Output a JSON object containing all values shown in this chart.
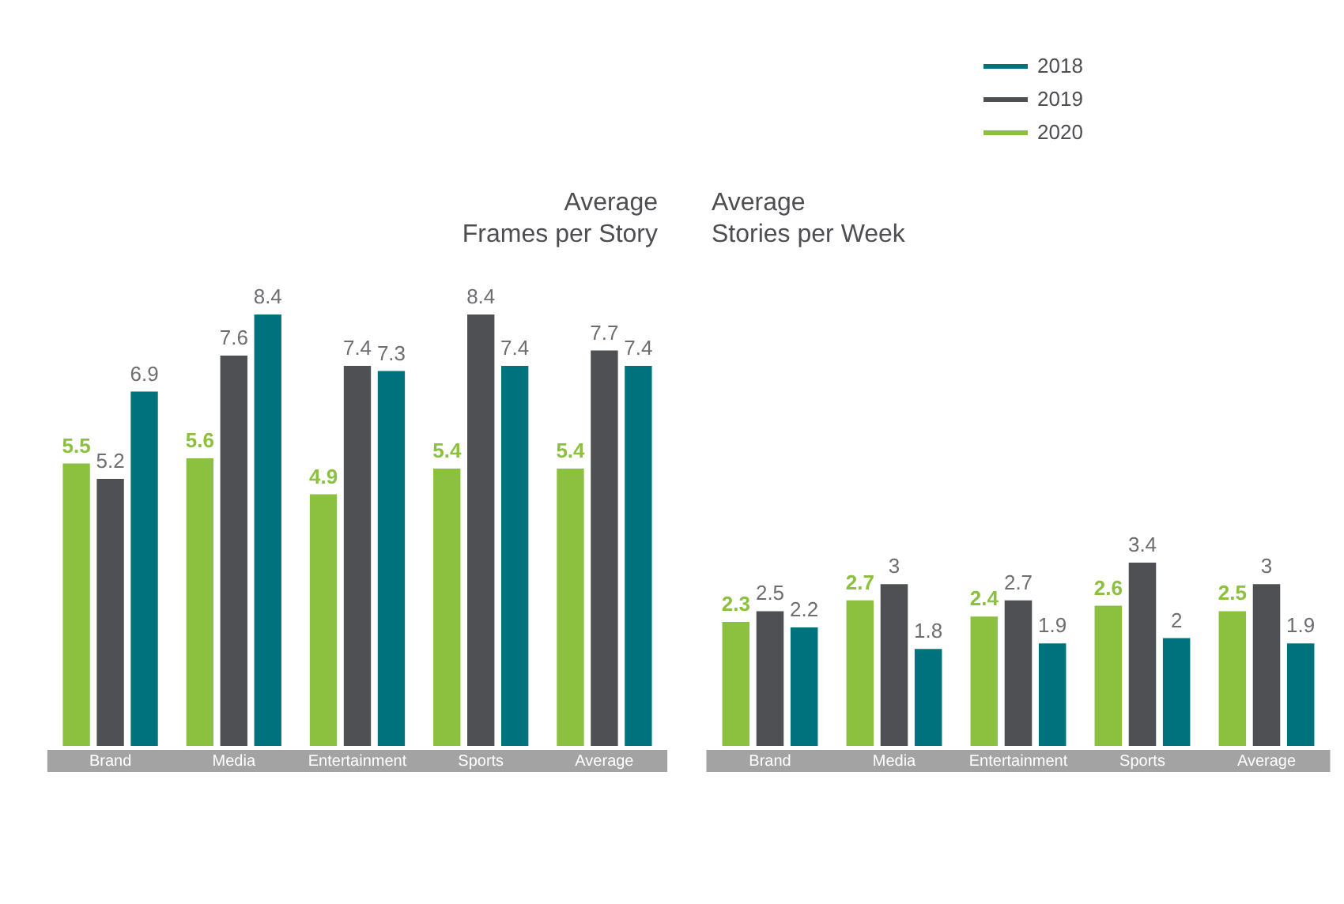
{
  "chart_data": [
    {
      "type": "bar",
      "title": "Average Frames per Story",
      "categories": [
        "Brand",
        "Media",
        "Entertainment",
        "Sports",
        "Average"
      ],
      "series": [
        {
          "name": "2020",
          "color": "#8cc03f",
          "values": [
            5.5,
            5.6,
            4.9,
            5.4,
            5.4
          ]
        },
        {
          "name": "2019",
          "color": "#4f5054",
          "values": [
            5.2,
            7.6,
            7.4,
            8.4,
            7.7
          ]
        },
        {
          "name": "2018",
          "color": "#00727e",
          "values": [
            6.9,
            8.4,
            7.3,
            7.4,
            7.4
          ]
        }
      ],
      "tick_labels": "x",
      "data_labels": true,
      "grid": false,
      "legend": "top right"
    },
    {
      "type": "bar",
      "title": "Average Stories per Week",
      "categories": [
        "Brand",
        "Media",
        "Entertainment",
        "Sports",
        "Average"
      ],
      "series": [
        {
          "name": "2020",
          "color": "#8cc03f",
          "values": [
            2.3,
            2.7,
            2.4,
            2.6,
            2.5
          ]
        },
        {
          "name": "2019",
          "color": "#4f5054",
          "values": [
            2.5,
            3,
            2.7,
            3.4,
            3
          ]
        },
        {
          "name": "2018",
          "color": "#00727e",
          "values": [
            2.2,
            1.8,
            1.9,
            2,
            1.9
          ]
        }
      ],
      "tick_labels": "x",
      "data_labels": true,
      "grid": false
    }
  ]
}
